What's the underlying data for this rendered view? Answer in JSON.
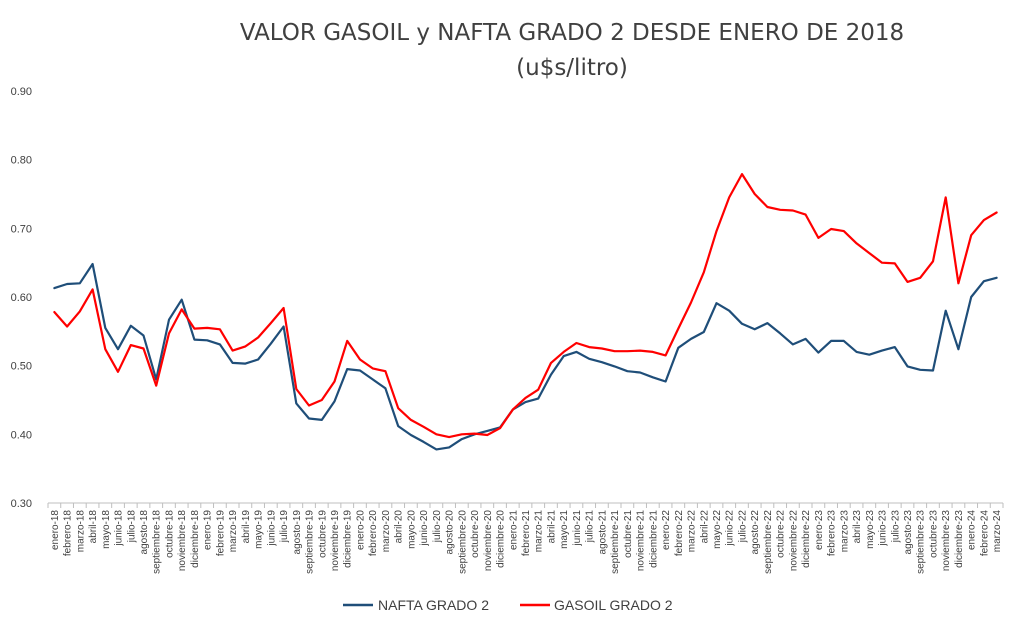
{
  "chart_data": {
    "type": "line",
    "title": "VALOR GASOIL y NAFTA GRADO 2 DESDE ENERO DE 2018",
    "subtitle": "(u$s/litro)",
    "xlabel": "",
    "ylabel": "",
    "ylim": [
      0.3,
      0.9
    ],
    "yticks": [
      "0.30",
      "0.40",
      "0.50",
      "0.60",
      "0.70",
      "0.80",
      "0.90"
    ],
    "grid": false,
    "legend_position": "bottom",
    "categories": [
      "enero-18",
      "febrero-18",
      "marzo-18",
      "abril-18",
      "mayo-18",
      "junio-18",
      "julio-18",
      "agosto-18",
      "septiembre-18",
      "octubre-18",
      "noviembre-18",
      "diciembre-18",
      "enero-19",
      "febrero-19",
      "marzo-19",
      "abril-19",
      "mayo-19",
      "junio-19",
      "julio-19",
      "agosto-19",
      "septiembre-19",
      "octubre-19",
      "noviembre-19",
      "diciembre-19",
      "enero-20",
      "febrero-20",
      "marzo-20",
      "abril-20",
      "mayo-20",
      "junio-20",
      "julio-20",
      "agosto-20",
      "septiembre-20",
      "octubre-20",
      "noviembre-20",
      "diciembre-20",
      "enero-21",
      "febrero-21",
      "marzo-21",
      "abril-21",
      "mayo-21",
      "junio-21",
      "julio-21",
      "agosto-21",
      "septiembre-21",
      "octubre-21",
      "noviembre-21",
      "diciembre-21",
      "enero-22",
      "febrero-22",
      "marzo-22",
      "abril-22",
      "mayo-22",
      "junio-22",
      "julio-22",
      "agosto-22",
      "septiembre-22",
      "octubre-22",
      "noviembre-22",
      "diciembre-22",
      "enero-23",
      "febrero-23",
      "marzo-23",
      "abril-23",
      "mayo-23",
      "junio-23",
      "julio-23",
      "agosto-23",
      "septiembre-23",
      "octubre-23",
      "noviembre-23",
      "diciembre-23",
      "enero-24",
      "febrero-24",
      "marzo-24"
    ],
    "series": [
      {
        "name": "NAFTA GRADO 2",
        "color": "#1f4e79",
        "values": [
          0.613,
          0.619,
          0.62,
          0.648,
          0.555,
          0.524,
          0.558,
          0.544,
          0.48,
          0.567,
          0.596,
          0.538,
          0.537,
          0.531,
          0.504,
          0.503,
          0.509,
          0.532,
          0.557,
          0.445,
          0.423,
          0.421,
          0.448,
          0.495,
          0.493,
          0.48,
          0.467,
          0.412,
          0.399,
          0.389,
          0.378,
          0.381,
          0.393,
          0.4,
          0.405,
          0.41,
          0.436,
          0.447,
          0.452,
          0.487,
          0.514,
          0.52,
          0.51,
          0.505,
          0.499,
          0.492,
          0.49,
          0.483,
          0.477,
          0.526,
          0.539,
          0.549,
          0.591,
          0.58,
          0.561,
          0.553,
          0.562,
          0.547,
          0.531,
          0.539,
          0.519,
          0.536,
          0.536,
          0.52,
          0.516,
          0.522,
          0.527,
          0.499,
          0.494,
          0.493,
          0.58,
          0.524,
          0.6,
          0.623,
          0.628
        ]
      },
      {
        "name": "GASOIL GRADO 2",
        "color": "#ff0000",
        "values": [
          0.578,
          0.557,
          0.579,
          0.611,
          0.524,
          0.491,
          0.53,
          0.525,
          0.471,
          0.547,
          0.582,
          0.554,
          0.555,
          0.553,
          0.522,
          0.528,
          0.541,
          0.562,
          0.584,
          0.466,
          0.442,
          0.45,
          0.477,
          0.536,
          0.509,
          0.496,
          0.492,
          0.438,
          0.421,
          0.411,
          0.4,
          0.396,
          0.4,
          0.401,
          0.399,
          0.409,
          0.436,
          0.453,
          0.465,
          0.504,
          0.52,
          0.533,
          0.527,
          0.525,
          0.521,
          0.521,
          0.522,
          0.52,
          0.515,
          0.554,
          0.592,
          0.636,
          0.696,
          0.745,
          0.779,
          0.75,
          0.731,
          0.727,
          0.726,
          0.72,
          0.686,
          0.699,
          0.696,
          0.678,
          0.664,
          0.65,
          0.649,
          0.622,
          0.628,
          0.652,
          0.745,
          0.62,
          0.69,
          0.712,
          0.723
        ]
      }
    ]
  }
}
